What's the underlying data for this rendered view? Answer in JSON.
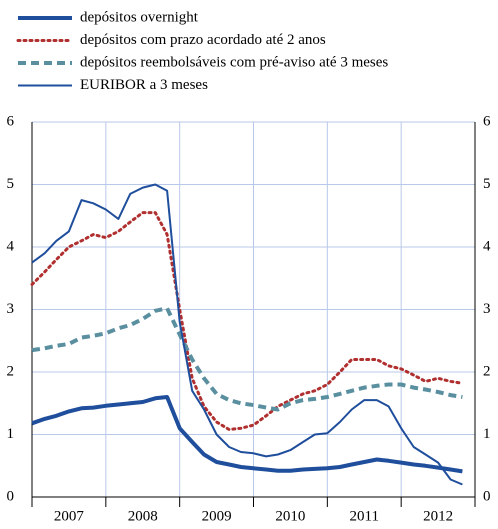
{
  "chart_data": {
    "type": "line",
    "x": [
      2007.0,
      2007.17,
      2007.33,
      2007.5,
      2007.67,
      2007.83,
      2008.0,
      2008.17,
      2008.33,
      2008.5,
      2008.67,
      2008.83,
      2009.0,
      2009.17,
      2009.33,
      2009.5,
      2009.67,
      2009.83,
      2010.0,
      2010.17,
      2010.33,
      2010.5,
      2010.67,
      2010.83,
      2011.0,
      2011.17,
      2011.33,
      2011.5,
      2011.67,
      2011.83,
      2012.0,
      2012.17,
      2012.33,
      2012.5,
      2012.67,
      2012.83
    ],
    "categories": [
      "2007",
      "2008",
      "2009",
      "2010",
      "2011",
      "2012"
    ],
    "xlim": [
      2007,
      2013
    ],
    "xticks": [
      2007,
      2008,
      2009,
      2010,
      2011,
      2012,
      2013
    ],
    "ylim": [
      0,
      6
    ],
    "yticks": [
      0,
      1,
      2,
      3,
      4,
      5,
      6
    ],
    "y2lim": [
      0,
      6
    ],
    "y2ticks": [
      0,
      1,
      2,
      3,
      4,
      5,
      6
    ],
    "grid": true,
    "series": [
      {
        "name": "depósitos overnight",
        "color": "#1f4e9c",
        "line_style": "solid",
        "line_width": 4,
        "values": [
          1.18,
          1.25,
          1.3,
          1.37,
          1.42,
          1.43,
          1.46,
          1.48,
          1.5,
          1.52,
          1.58,
          1.6,
          1.1,
          0.88,
          0.68,
          0.56,
          0.52,
          0.48,
          0.46,
          0.44,
          0.42,
          0.42,
          0.44,
          0.45,
          0.46,
          0.48,
          0.52,
          0.56,
          0.6,
          0.58,
          0.55,
          0.52,
          0.5,
          0.47,
          0.44,
          0.41
        ]
      },
      {
        "name": "depósitos com prazo acordado até 2 anos",
        "color": "#b03030",
        "line_style": "dotted",
        "line_width": 3,
        "values": [
          3.4,
          3.6,
          3.8,
          4.0,
          4.1,
          4.2,
          4.15,
          4.25,
          4.4,
          4.55,
          4.55,
          4.2,
          3.0,
          1.9,
          1.45,
          1.2,
          1.08,
          1.1,
          1.15,
          1.3,
          1.45,
          1.55,
          1.65,
          1.7,
          1.8,
          2.0,
          2.2,
          2.2,
          2.2,
          2.1,
          2.05,
          1.95,
          1.85,
          1.9,
          1.85,
          1.82
        ]
      },
      {
        "name": "depósitos reembolsáveis com pré-aviso até 3 meses",
        "color": "#5a8fa0",
        "line_style": "dashed",
        "line_width": 4,
        "values": [
          2.35,
          2.38,
          2.42,
          2.45,
          2.55,
          2.58,
          2.62,
          2.7,
          2.75,
          2.85,
          2.98,
          3.02,
          2.6,
          2.2,
          1.9,
          1.65,
          1.55,
          1.5,
          1.47,
          1.43,
          1.4,
          1.5,
          1.55,
          1.57,
          1.6,
          1.65,
          1.7,
          1.75,
          1.78,
          1.8,
          1.8,
          1.75,
          1.72,
          1.68,
          1.63,
          1.6
        ]
      },
      {
        "name": "EURIBOR a 3 meses",
        "color": "#1f4e9c",
        "line_style": "solid",
        "line_width": 2,
        "values": [
          3.75,
          3.9,
          4.1,
          4.25,
          4.75,
          4.7,
          4.6,
          4.45,
          4.85,
          4.95,
          5.0,
          4.9,
          2.8,
          1.7,
          1.4,
          1.0,
          0.8,
          0.72,
          0.7,
          0.65,
          0.68,
          0.75,
          0.88,
          1.0,
          1.02,
          1.2,
          1.4,
          1.55,
          1.55,
          1.45,
          1.1,
          0.8,
          0.68,
          0.55,
          0.28,
          0.2
        ]
      }
    ]
  }
}
